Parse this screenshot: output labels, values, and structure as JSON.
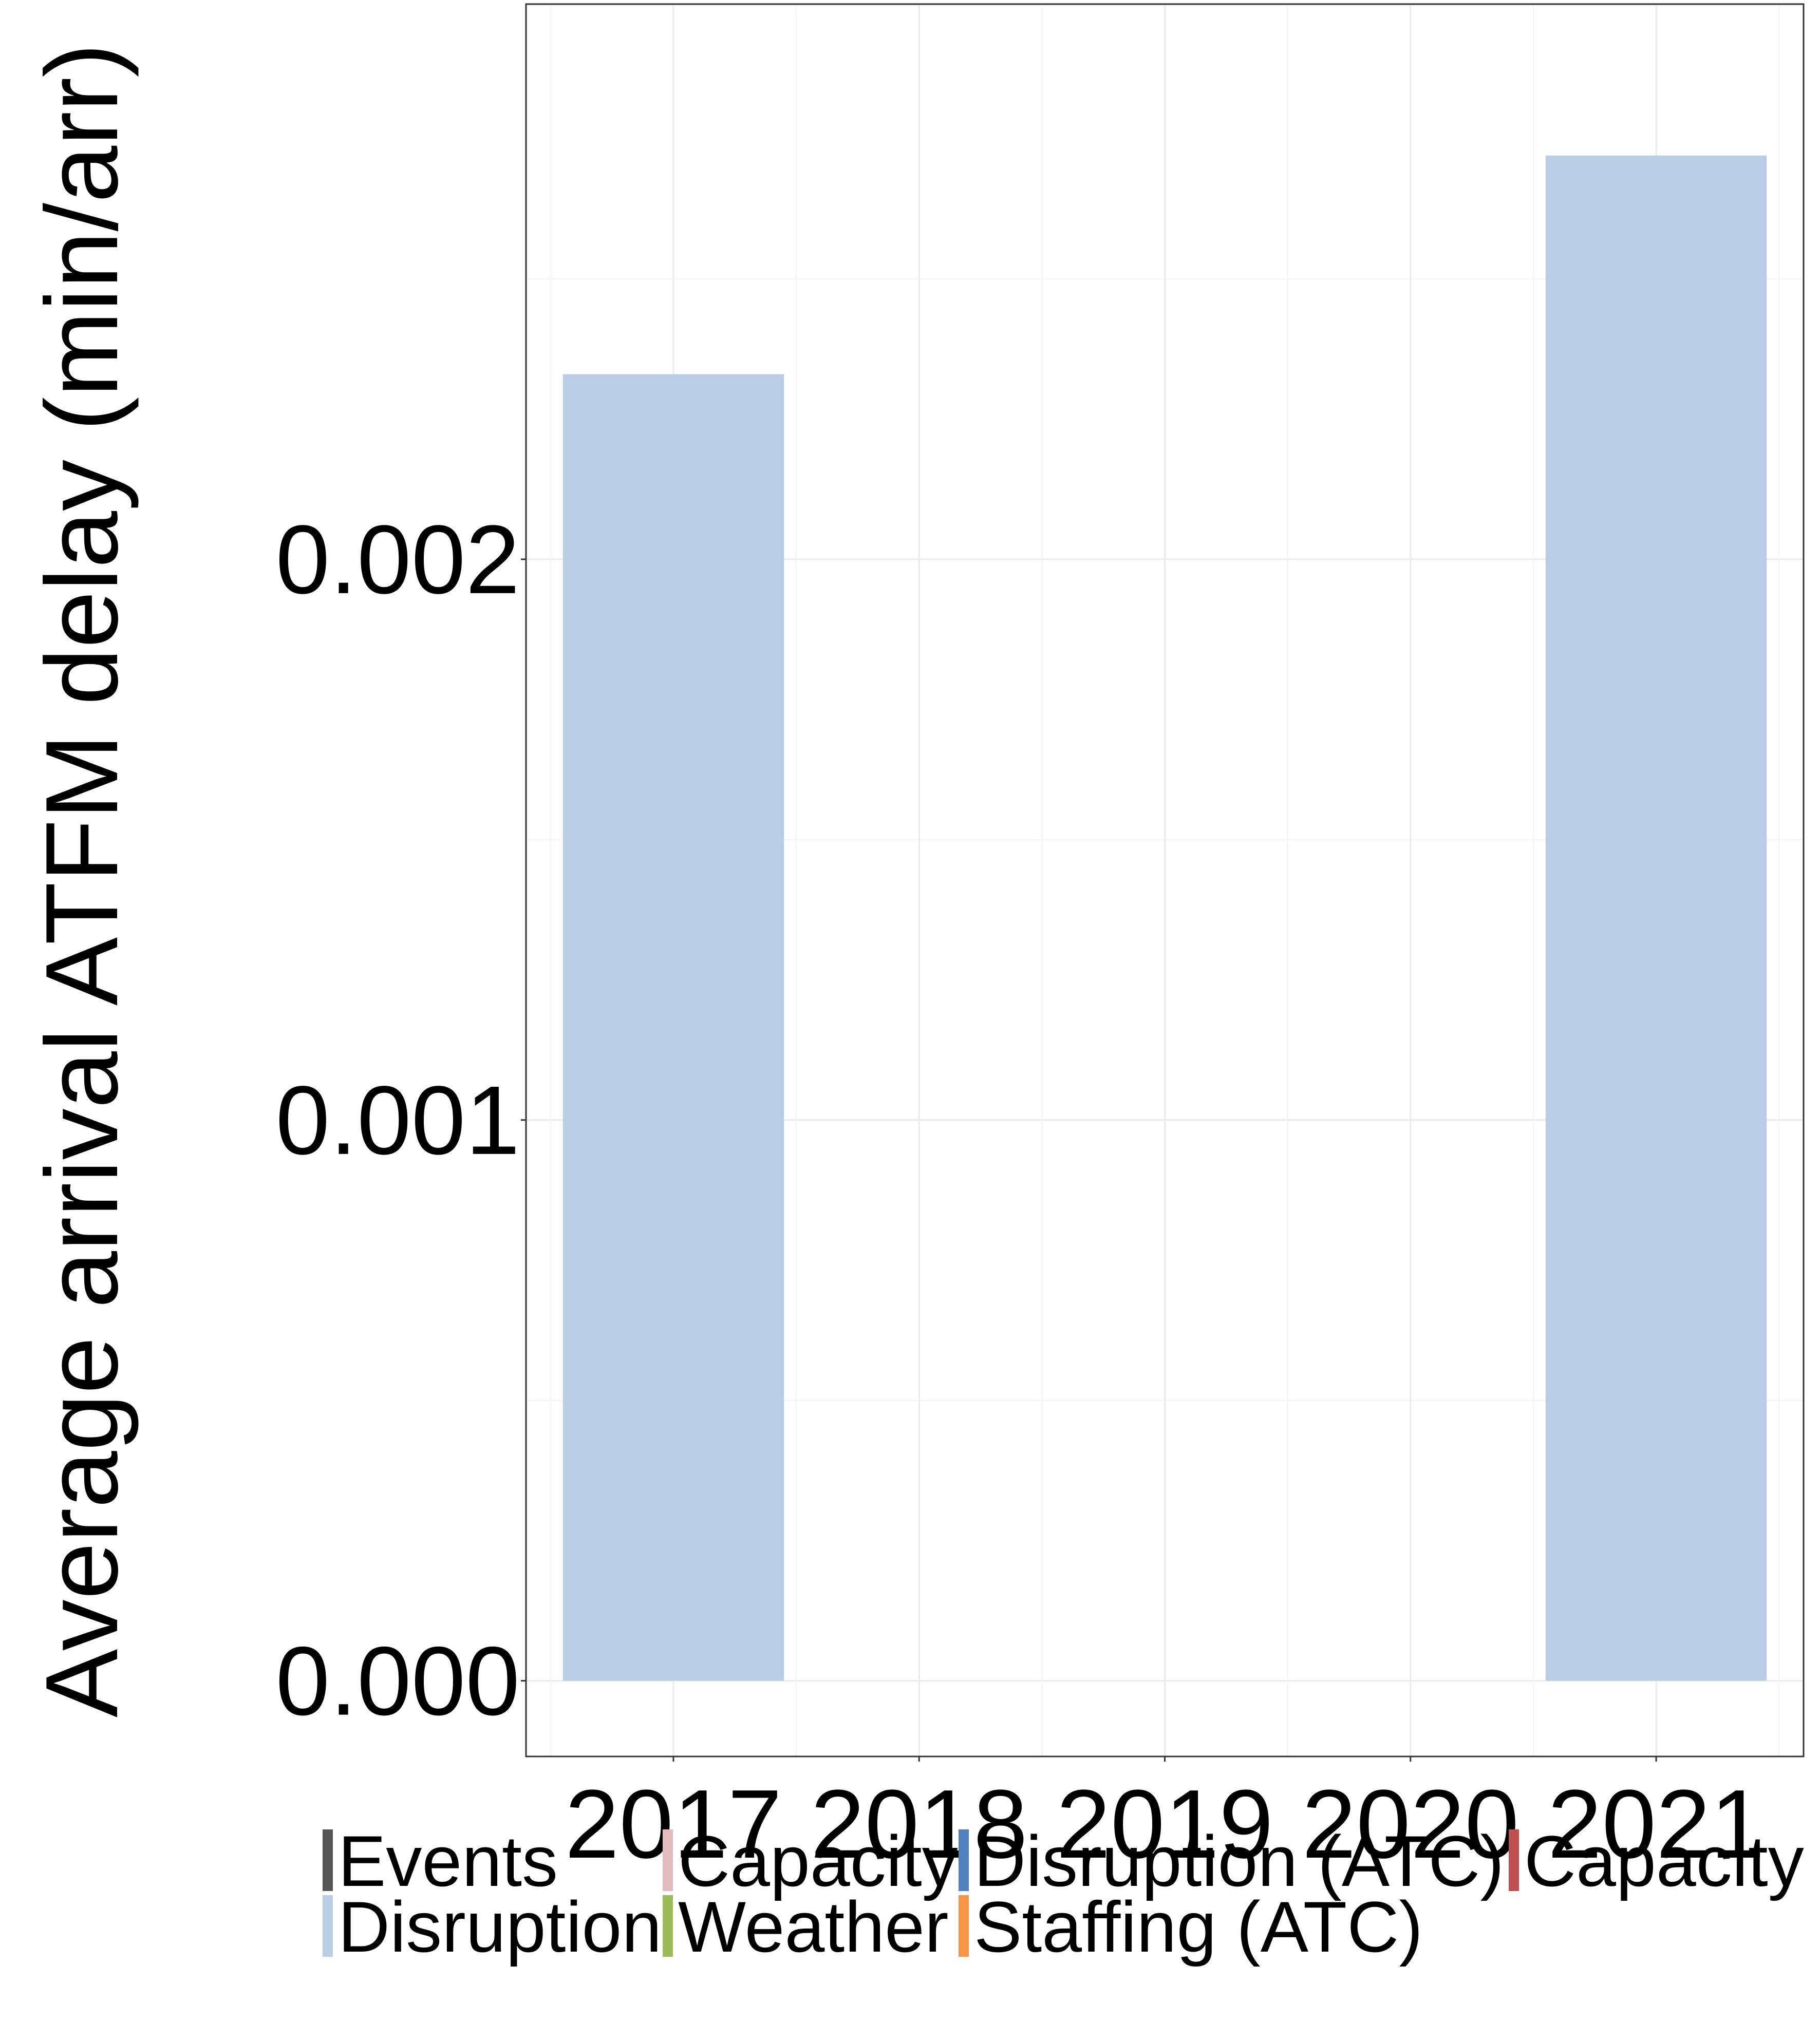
{
  "chart_data": {
    "type": "bar",
    "title": "",
    "xlabel": "",
    "ylabel": "Average arrival ATFM delay (min/arr)",
    "categories": [
      "2017",
      "2018",
      "2019",
      "2020",
      "2021"
    ],
    "series": [
      {
        "name": "Disruption",
        "color": "#b9cde4",
        "values": [
          0.00233,
          0,
          0,
          0,
          0.00272
        ]
      }
    ],
    "ylim": [
      -0.000135,
      0.00299
    ],
    "yticks": [
      "0.000",
      "0.001",
      "0.002"
    ],
    "ytick_values": [
      0,
      0.001,
      0.002
    ],
    "grid": true,
    "legend_position": "bottom",
    "legend": [
      {
        "label": "Events",
        "color": "#555555"
      },
      {
        "label": "Capacity",
        "color": "#e5bcbd"
      },
      {
        "label": "Disruption (ATC)",
        "color": "#4f81bd"
      },
      {
        "label": "Capacity",
        "color": "#c0504d"
      },
      {
        "label": "Disruption",
        "color": "#b9cde4"
      },
      {
        "label": "Weather",
        "color": "#9bbb59"
      },
      {
        "label": "Staffing (ATC)",
        "color": "#f79646"
      }
    ]
  }
}
